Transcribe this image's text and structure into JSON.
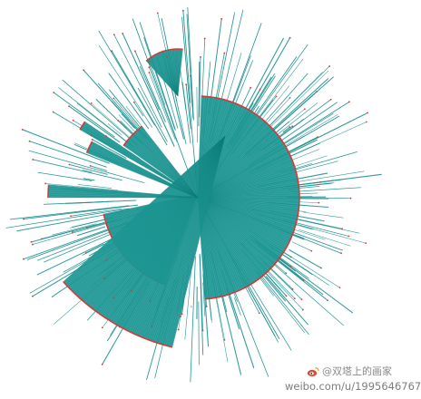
{
  "figure": {
    "type": "radial-tree",
    "colors": {
      "link": "#1a9090",
      "fan_fill": "#1f9a97",
      "fan_edge": "#d23a3a",
      "leaf_dot": "#d23a3a",
      "background": "#ffffff"
    }
  },
  "watermark": {
    "handle": "@双塔上的画家",
    "url": "weibo.com/u/1995646767",
    "icon": "weibo-logo-icon"
  }
}
